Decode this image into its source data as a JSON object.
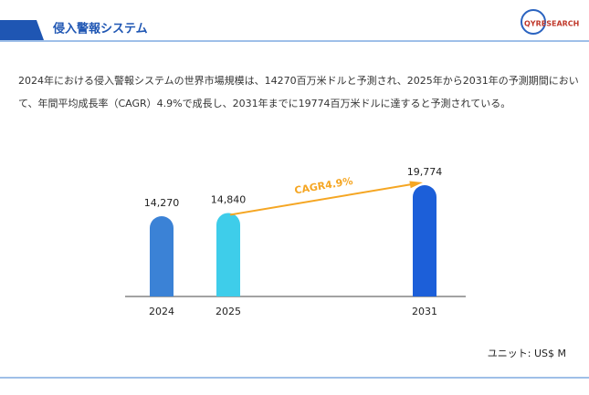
{
  "header": {
    "title": "侵入警報システム",
    "logo": "QYRESEARCH"
  },
  "description": [
    "2024年における侵入警報システムの世界市場規模は、14270百万米ドルと予測され、2025年から2031年の予測期間におい",
    "て、年間平均成長率（CAGR）4.9%で成長し、2031年までに19774百万米ドルに達すると予測されている。"
  ],
  "chart_data": {
    "type": "bar",
    "categories": [
      "2024",
      "2025",
      "2031"
    ],
    "values": [
      14270,
      14840,
      19774
    ],
    "value_labels": [
      "14,270",
      "14,840",
      "19,774"
    ],
    "colors": [
      "#3b82d6",
      "#3ecdea",
      "#1c5fd9"
    ],
    "annotation": "CAGR4.9%",
    "unit_label": "ユニット: US$ M"
  }
}
